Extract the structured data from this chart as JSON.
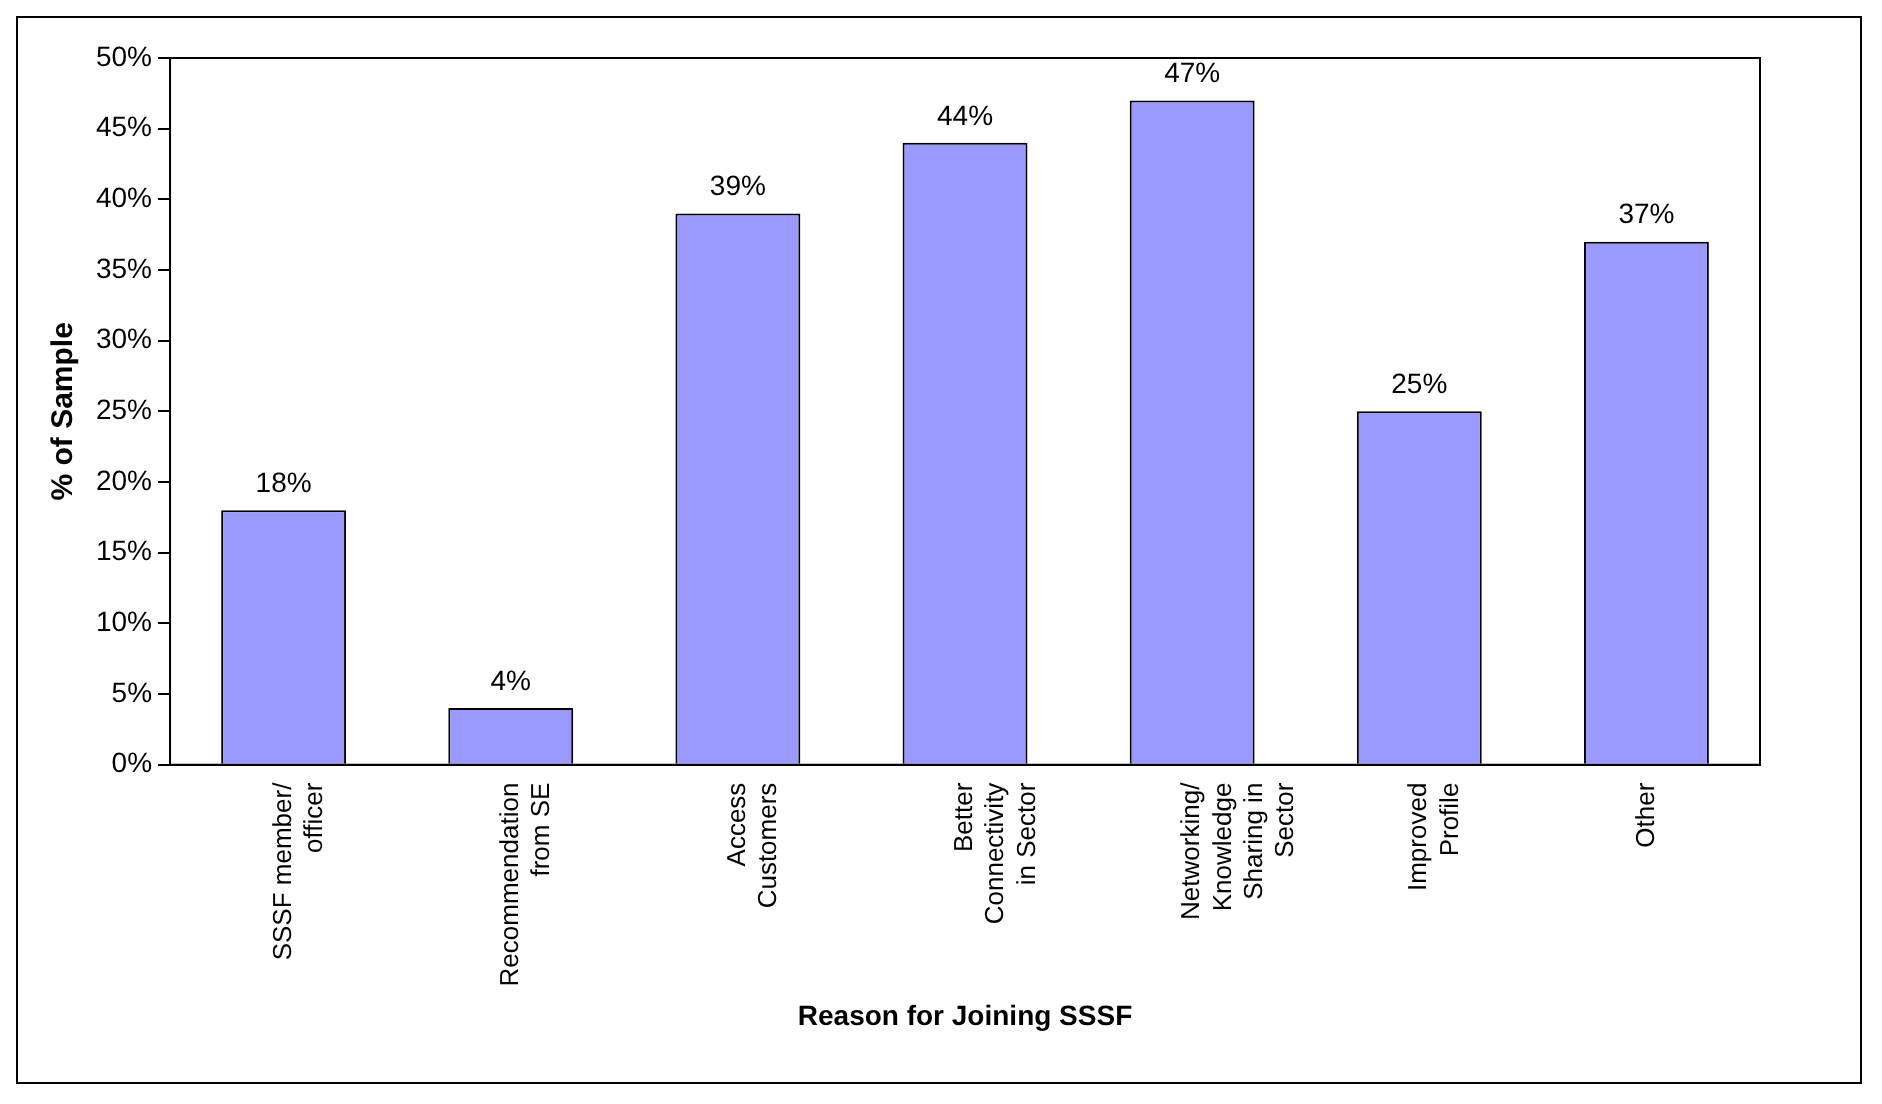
{
  "chart_data": {
    "type": "bar",
    "xlabel": "Reason for Joining SSSF",
    "ylabel": "% of Sample",
    "categories": [
      "SSSF member/ officer",
      "Recommendation from SE",
      "Access Customers",
      "Better Connectivity in Sector",
      "Networking/ Knowledge Sharing in Sector",
      "Improved Profile",
      "Other"
    ],
    "values": [
      18,
      4,
      39,
      44,
      47,
      25,
      37
    ],
    "value_labels": [
      "18%",
      "4%",
      "39%",
      "44%",
      "47%",
      "25%",
      "37%"
    ],
    "color": "#9999ff",
    "grid": false,
    "legend": false,
    "ylim": [
      0,
      50
    ],
    "yticks": [
      {
        "value": 0,
        "label": "0%"
      },
      {
        "value": 5,
        "label": "5%"
      },
      {
        "value": 10,
        "label": "10%"
      },
      {
        "value": 15,
        "label": "15%"
      },
      {
        "value": 20,
        "label": "20%"
      },
      {
        "value": 25,
        "label": "25%"
      },
      {
        "value": 30,
        "label": "30%"
      },
      {
        "value": 35,
        "label": "35%"
      },
      {
        "value": 40,
        "label": "40%"
      },
      {
        "value": 45,
        "label": "45%"
      },
      {
        "value": 50,
        "label": "50%"
      }
    ]
  }
}
